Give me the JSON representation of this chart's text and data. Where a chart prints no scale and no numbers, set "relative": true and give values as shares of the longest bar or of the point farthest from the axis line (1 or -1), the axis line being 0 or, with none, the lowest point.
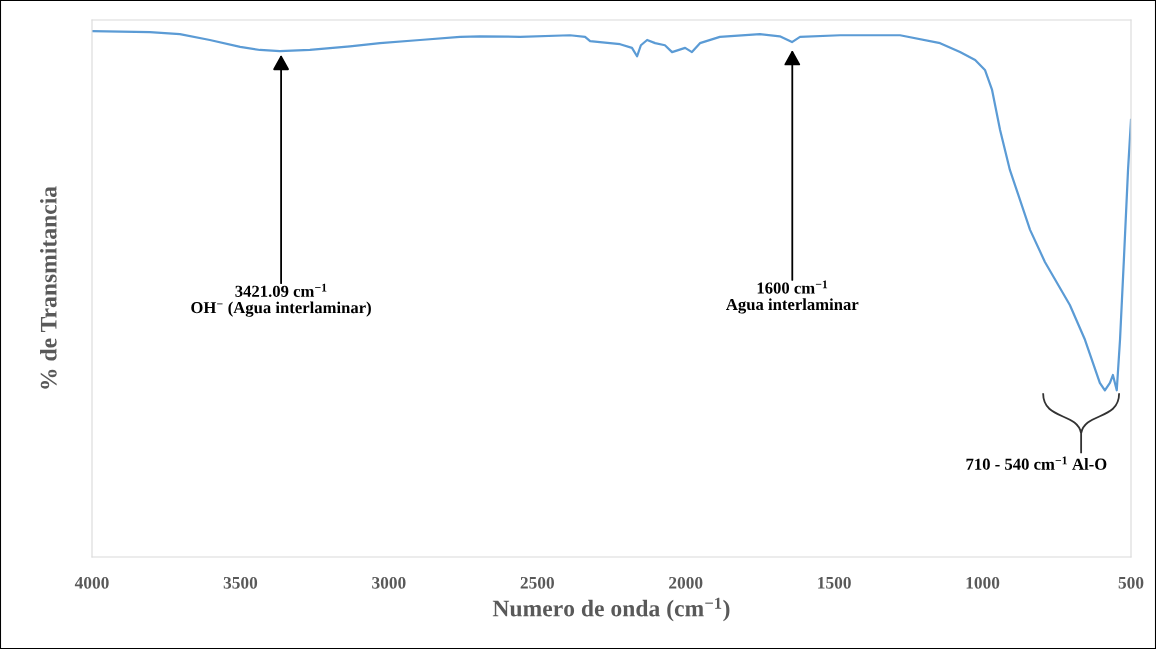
{
  "chart_data": {
    "type": "line",
    "relative": true,
    "xlabel": "Numero de onda (cm$^{−1}$)",
    "ylabel": "% de Transmitancia",
    "xlim": [
      4000,
      500
    ],
    "xticks": [
      4000,
      3500,
      3000,
      2500,
      2000,
      1500,
      1000,
      500
    ],
    "grid": false,
    "marker": "none",
    "line_style": "solid",
    "series": [
      {
        "color": "#5b9bd5",
        "x": [
          4000,
          3805,
          3704,
          3603,
          3501,
          3434,
          3367,
          3266,
          3131,
          3030,
          2895,
          2760,
          2693,
          2558,
          2390,
          2339,
          2322,
          2289,
          2221,
          2181,
          2164,
          2151,
          2130,
          2103,
          2070,
          2046,
          2002,
          1979,
          1952,
          1885,
          1750,
          1683,
          1642,
          1615,
          1480,
          1278,
          1143,
          1076,
          1025,
          992,
          968,
          941,
          908,
          840,
          790,
          706,
          655,
          605,
          588,
          571,
          561,
          548,
          537,
          524,
          510,
          500
        ],
        "values": [
          1.0,
          0.998,
          0.994,
          0.983,
          0.97,
          0.964,
          0.962,
          0.964,
          0.971,
          0.977,
          0.983,
          0.989,
          0.99,
          0.989,
          0.992,
          0.989,
          0.981,
          0.979,
          0.975,
          0.968,
          0.952,
          0.973,
          0.983,
          0.977,
          0.973,
          0.96,
          0.968,
          0.96,
          0.977,
          0.989,
          0.994,
          0.99,
          0.979,
          0.989,
          0.992,
          0.992,
          0.977,
          0.96,
          0.945,
          0.926,
          0.888,
          0.812,
          0.736,
          0.622,
          0.561,
          0.479,
          0.413,
          0.331,
          0.317,
          0.331,
          0.346,
          0.317,
          0.413,
          0.565,
          0.736,
          0.831
        ]
      }
    ],
    "annotations": [
      "3421.09 cm$^{−1}$\nOH$^{−}$ (Agua interlaminar)",
      "1600 cm$^{−1}$\nAgua interlaminar",
      "710 - 540 cm$^{−1}$ Al-O"
    ]
  }
}
